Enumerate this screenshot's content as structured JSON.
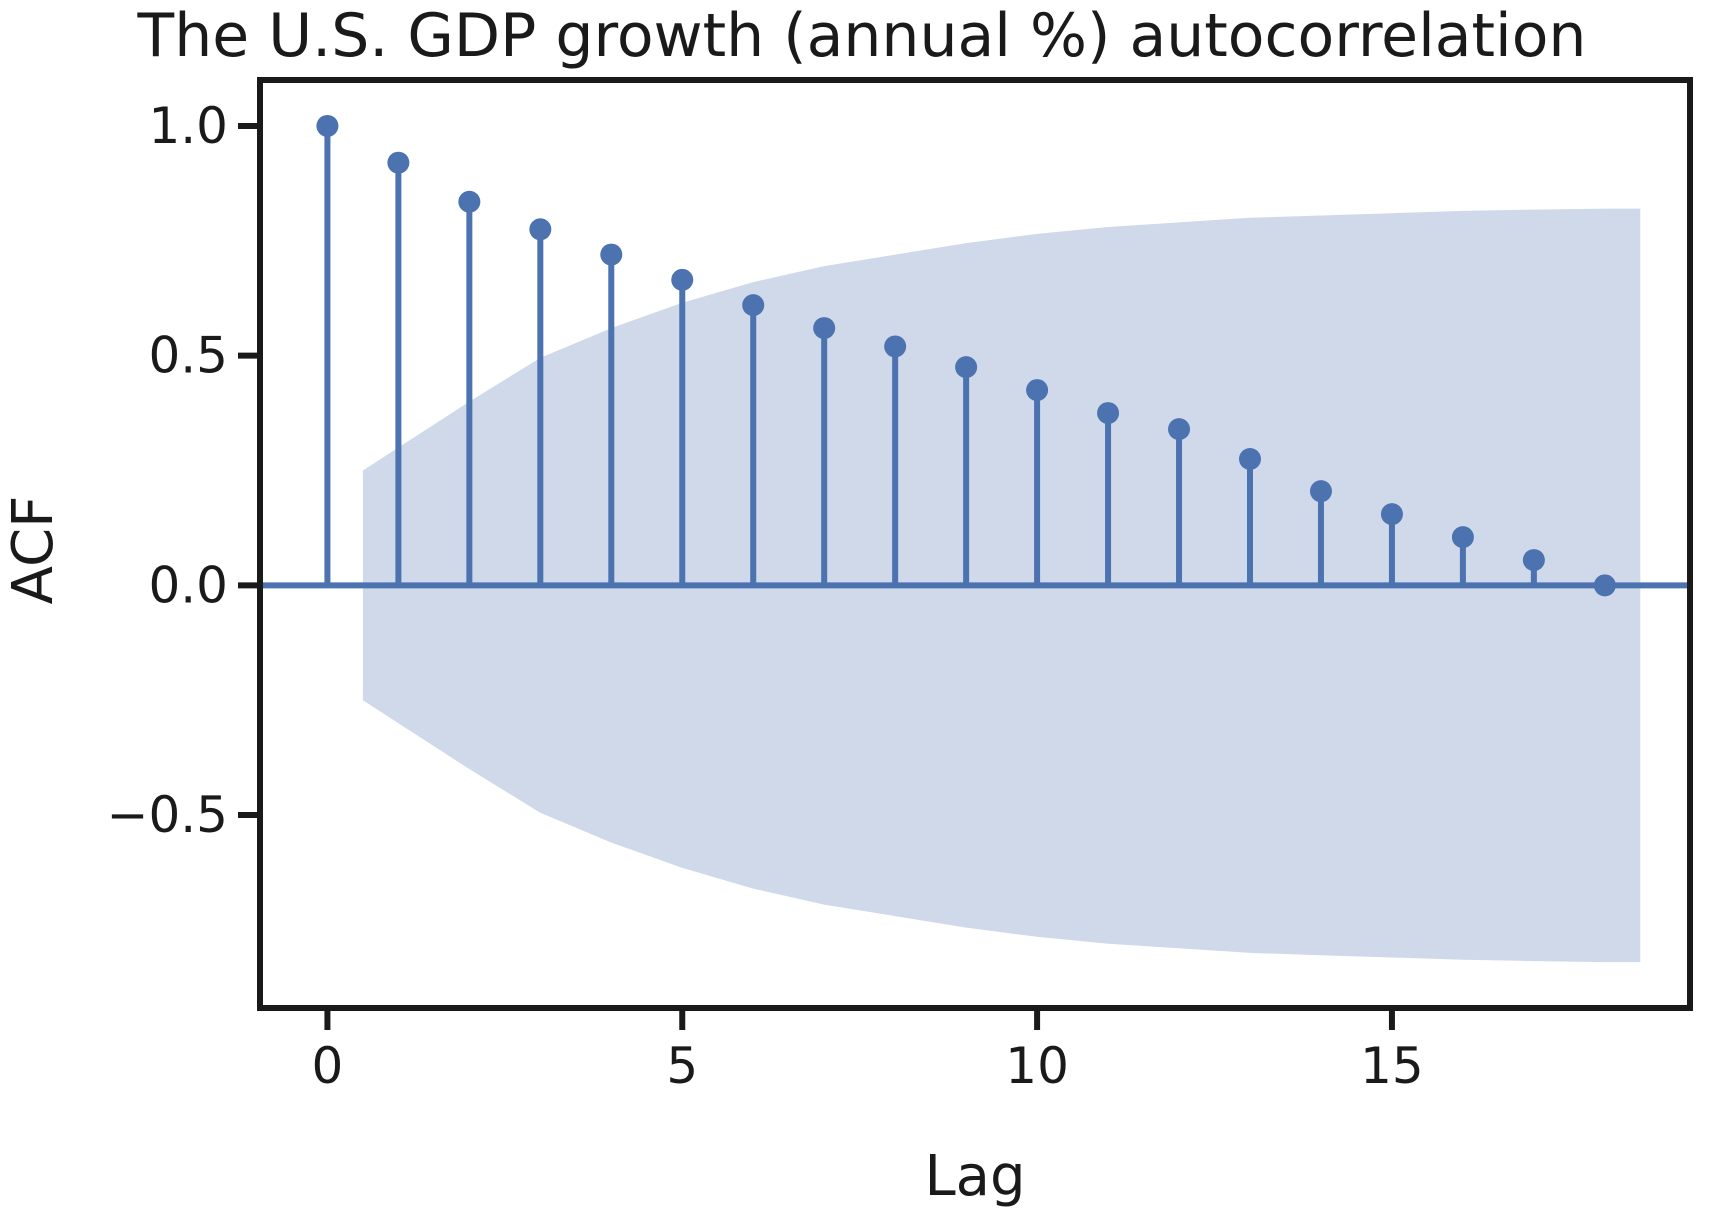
{
  "chart_data": {
    "type": "stem",
    "title": "The U.S. GDP growth (annual %) autocorrelation",
    "xlabel": "Lag",
    "ylabel": "ACF",
    "xlim": [
      -0.95,
      19.2
    ],
    "ylim": [
      -0.92,
      1.1
    ],
    "xticks": [
      0,
      5,
      10,
      15
    ],
    "xtick_labels": [
      "0",
      "5",
      "10",
      "15"
    ],
    "yticks": [
      1.0,
      0.5,
      0.0,
      -0.5
    ],
    "ytick_labels": [
      "1.0",
      "0.5",
      "0.0",
      "−0.5"
    ],
    "grid": false,
    "colors": {
      "stem": "#4c72b0",
      "band": "#cfd9ea",
      "frame": "#1a1a1a"
    },
    "lags": [
      0,
      1,
      2,
      3,
      4,
      5,
      6,
      7,
      8,
      9,
      10,
      11,
      12,
      13,
      14,
      15,
      16,
      17,
      18
    ],
    "acf": [
      1.0,
      0.92,
      0.835,
      0.775,
      0.72,
      0.665,
      0.61,
      0.56,
      0.52,
      0.475,
      0.425,
      0.375,
      0.34,
      0.275,
      0.205,
      0.155,
      0.105,
      0.055,
      0.0
    ],
    "confidence_band": {
      "lags": [
        0.5,
        1,
        2,
        3,
        4,
        5,
        6,
        7,
        8,
        9,
        10,
        11,
        12,
        13,
        14,
        15,
        16,
        17,
        18,
        18.5
      ],
      "upper": [
        0.25,
        0.3,
        0.4,
        0.495,
        0.56,
        0.615,
        0.66,
        0.695,
        0.72,
        0.745,
        0.765,
        0.78,
        0.79,
        0.8,
        0.805,
        0.81,
        0.815,
        0.818,
        0.82,
        0.82
      ],
      "lower": [
        -0.25,
        -0.3,
        -0.4,
        -0.495,
        -0.56,
        -0.615,
        -0.66,
        -0.695,
        -0.72,
        -0.745,
        -0.765,
        -0.78,
        -0.79,
        -0.8,
        -0.805,
        -0.81,
        -0.815,
        -0.818,
        -0.82,
        -0.82
      ]
    }
  }
}
